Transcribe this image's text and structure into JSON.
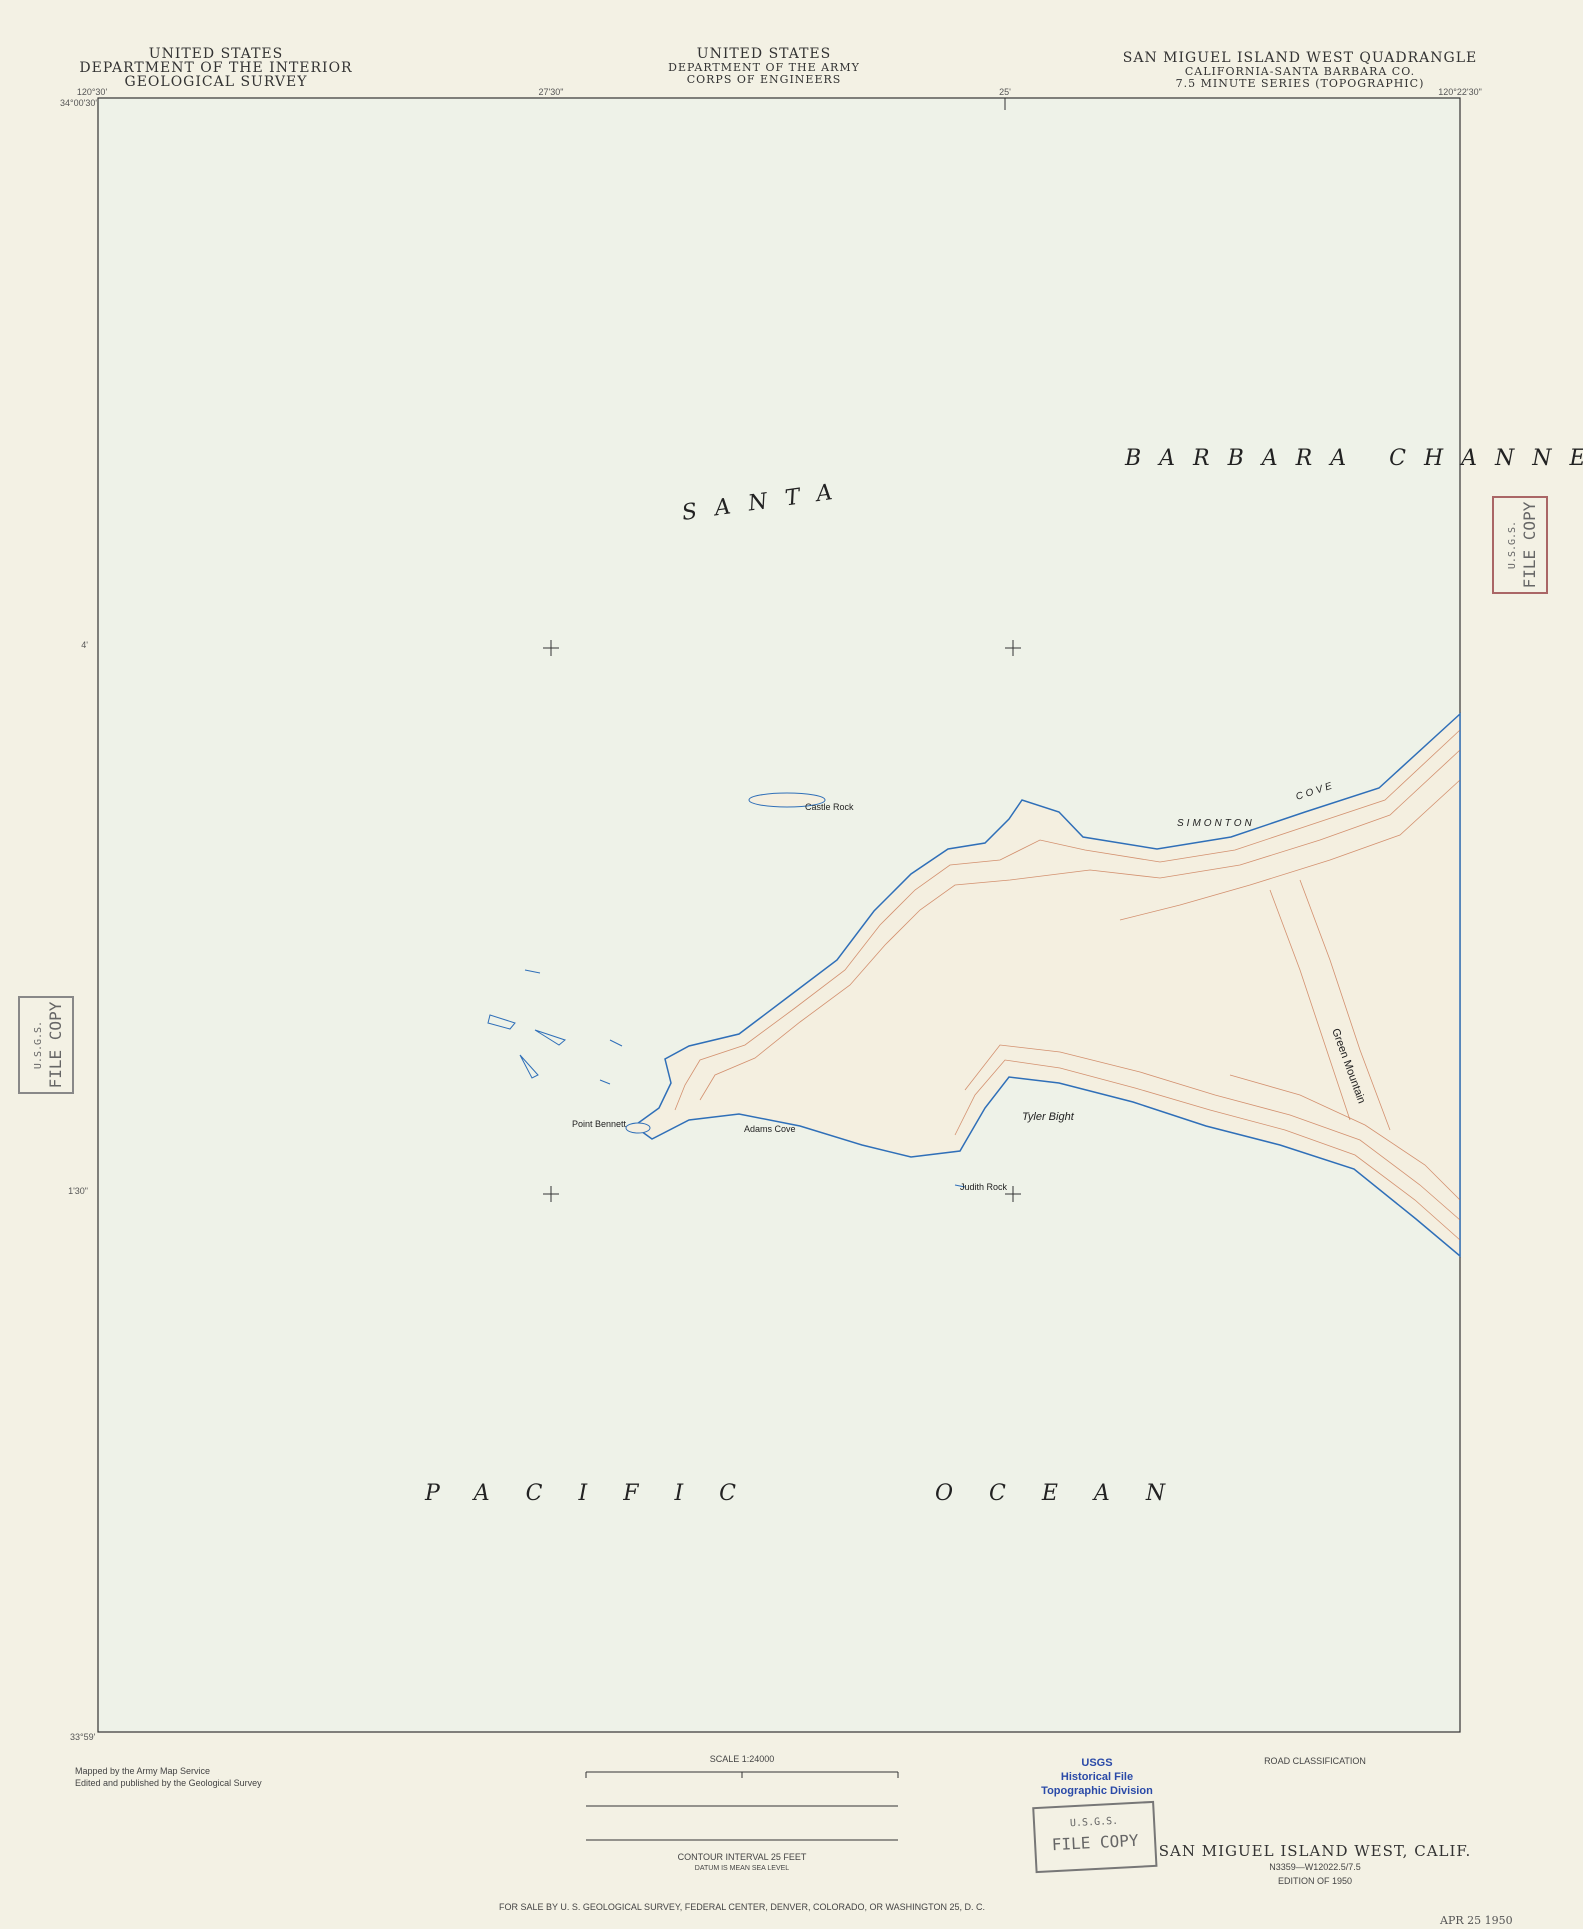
{
  "header": {
    "left": [
      "UNITED STATES",
      "DEPARTMENT OF THE INTERIOR",
      "GEOLOGICAL SURVEY"
    ],
    "center": [
      "UNITED STATES",
      "DEPARTMENT OF THE ARMY",
      "CORPS OF ENGINEERS"
    ],
    "right": [
      "SAN MIGUEL ISLAND WEST QUADRANGLE",
      "CALIFORNIA-SANTA BARBARA CO.",
      "7.5 MINUTE SERIES (TOPOGRAPHIC)"
    ]
  },
  "coordinates": [
    "120°30'",
    "34°00'30\"",
    "27'30\"",
    "25'",
    "120°22'30\"",
    "4'",
    "1'30\"",
    "33°59'"
  ],
  "places": [
    "SANTA",
    "BARBARA CHANNEL",
    "PACIFIC",
    "OCEAN",
    "SIMONTON",
    "COVE",
    "Castle Rock",
    "Point Bennett",
    "Adams Cove",
    "Tyler Bight",
    "Judith Rock",
    "Green Mountain"
  ],
  "stamps": [
    "U.S.G.S.",
    "FILE COPY"
  ],
  "usgs": [
    "USGS",
    "Historical File",
    "Topographic Division"
  ],
  "footer": {
    "credits": [
      "Mapped by the Army Map Service",
      "Edited and published by the Geological Survey"
    ],
    "scale": "SCALE 1:24000",
    "contour": "CONTOUR INTERVAL 25 FEET",
    "datum": "DATUM IS MEAN SEA LEVEL",
    "sale": "FOR SALE BY U. S. GEOLOGICAL SURVEY, FEDERAL CENTER, DENVER, COLORADO, OR WASHINGTON 25, D. C.",
    "roads": "ROAD CLASSIFICATION",
    "sheet": "SAN MIGUEL ISLAND WEST, CALIF.",
    "id": "N3359—W12022.5/7.5",
    "edition": "EDITION OF 1950",
    "date": "APR 25 1950"
  }
}
